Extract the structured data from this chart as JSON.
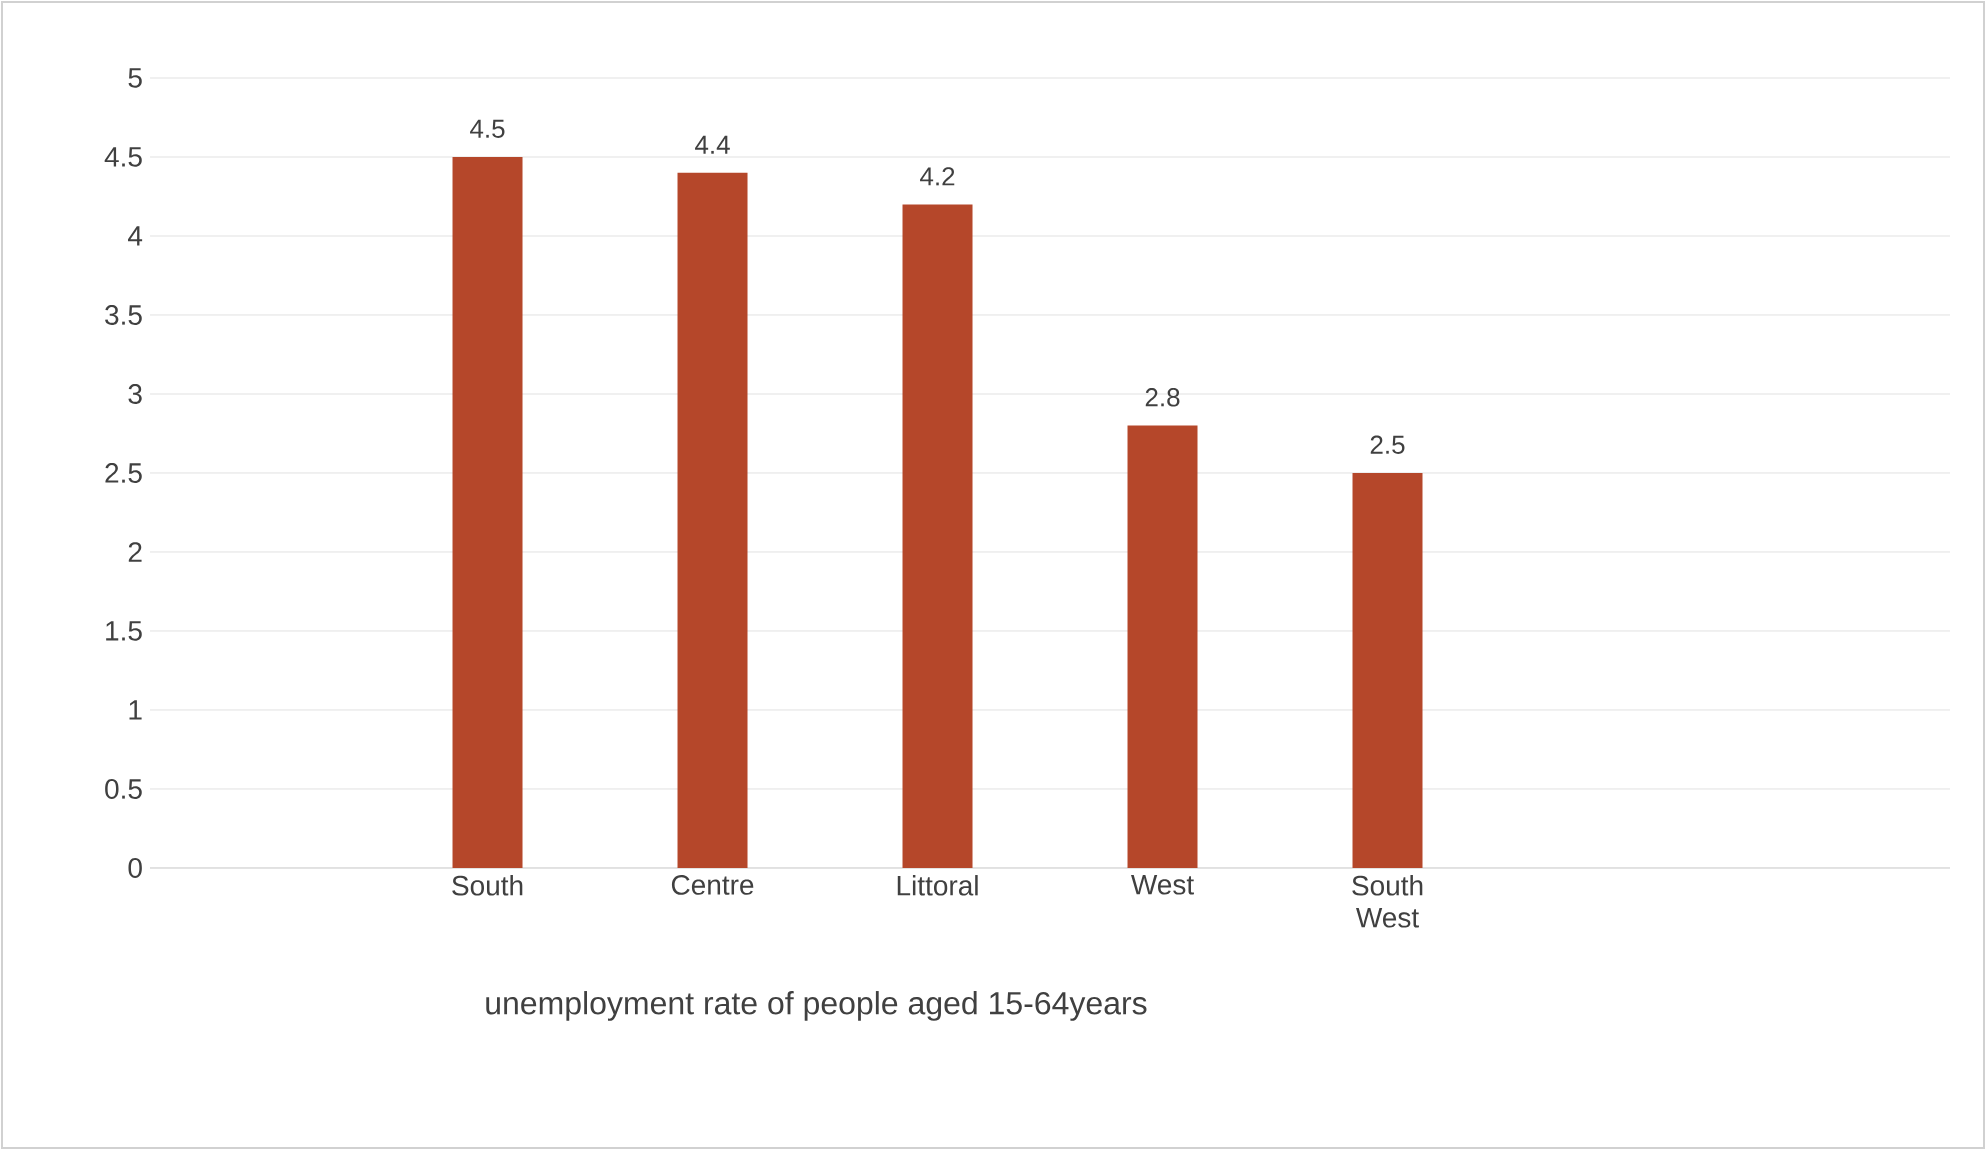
{
  "chart_data": {
    "type": "bar",
    "xlabel": "unemployment rate of people  aged 15-64years",
    "categories": [
      null,
      "South",
      "Centre",
      "Littoral",
      "West",
      "South West",
      null,
      null
    ],
    "values": [
      null,
      4.5,
      4.4,
      4.2,
      2.8,
      2.5,
      null,
      null
    ],
    "color": "#b5472a",
    "ylim": [
      0,
      5
    ],
    "yticks": [
      0,
      0.5,
      1,
      1.5,
      2,
      2.5,
      3,
      3.5,
      4,
      4.5,
      5
    ],
    "grid": "y",
    "data_labels": true
  }
}
